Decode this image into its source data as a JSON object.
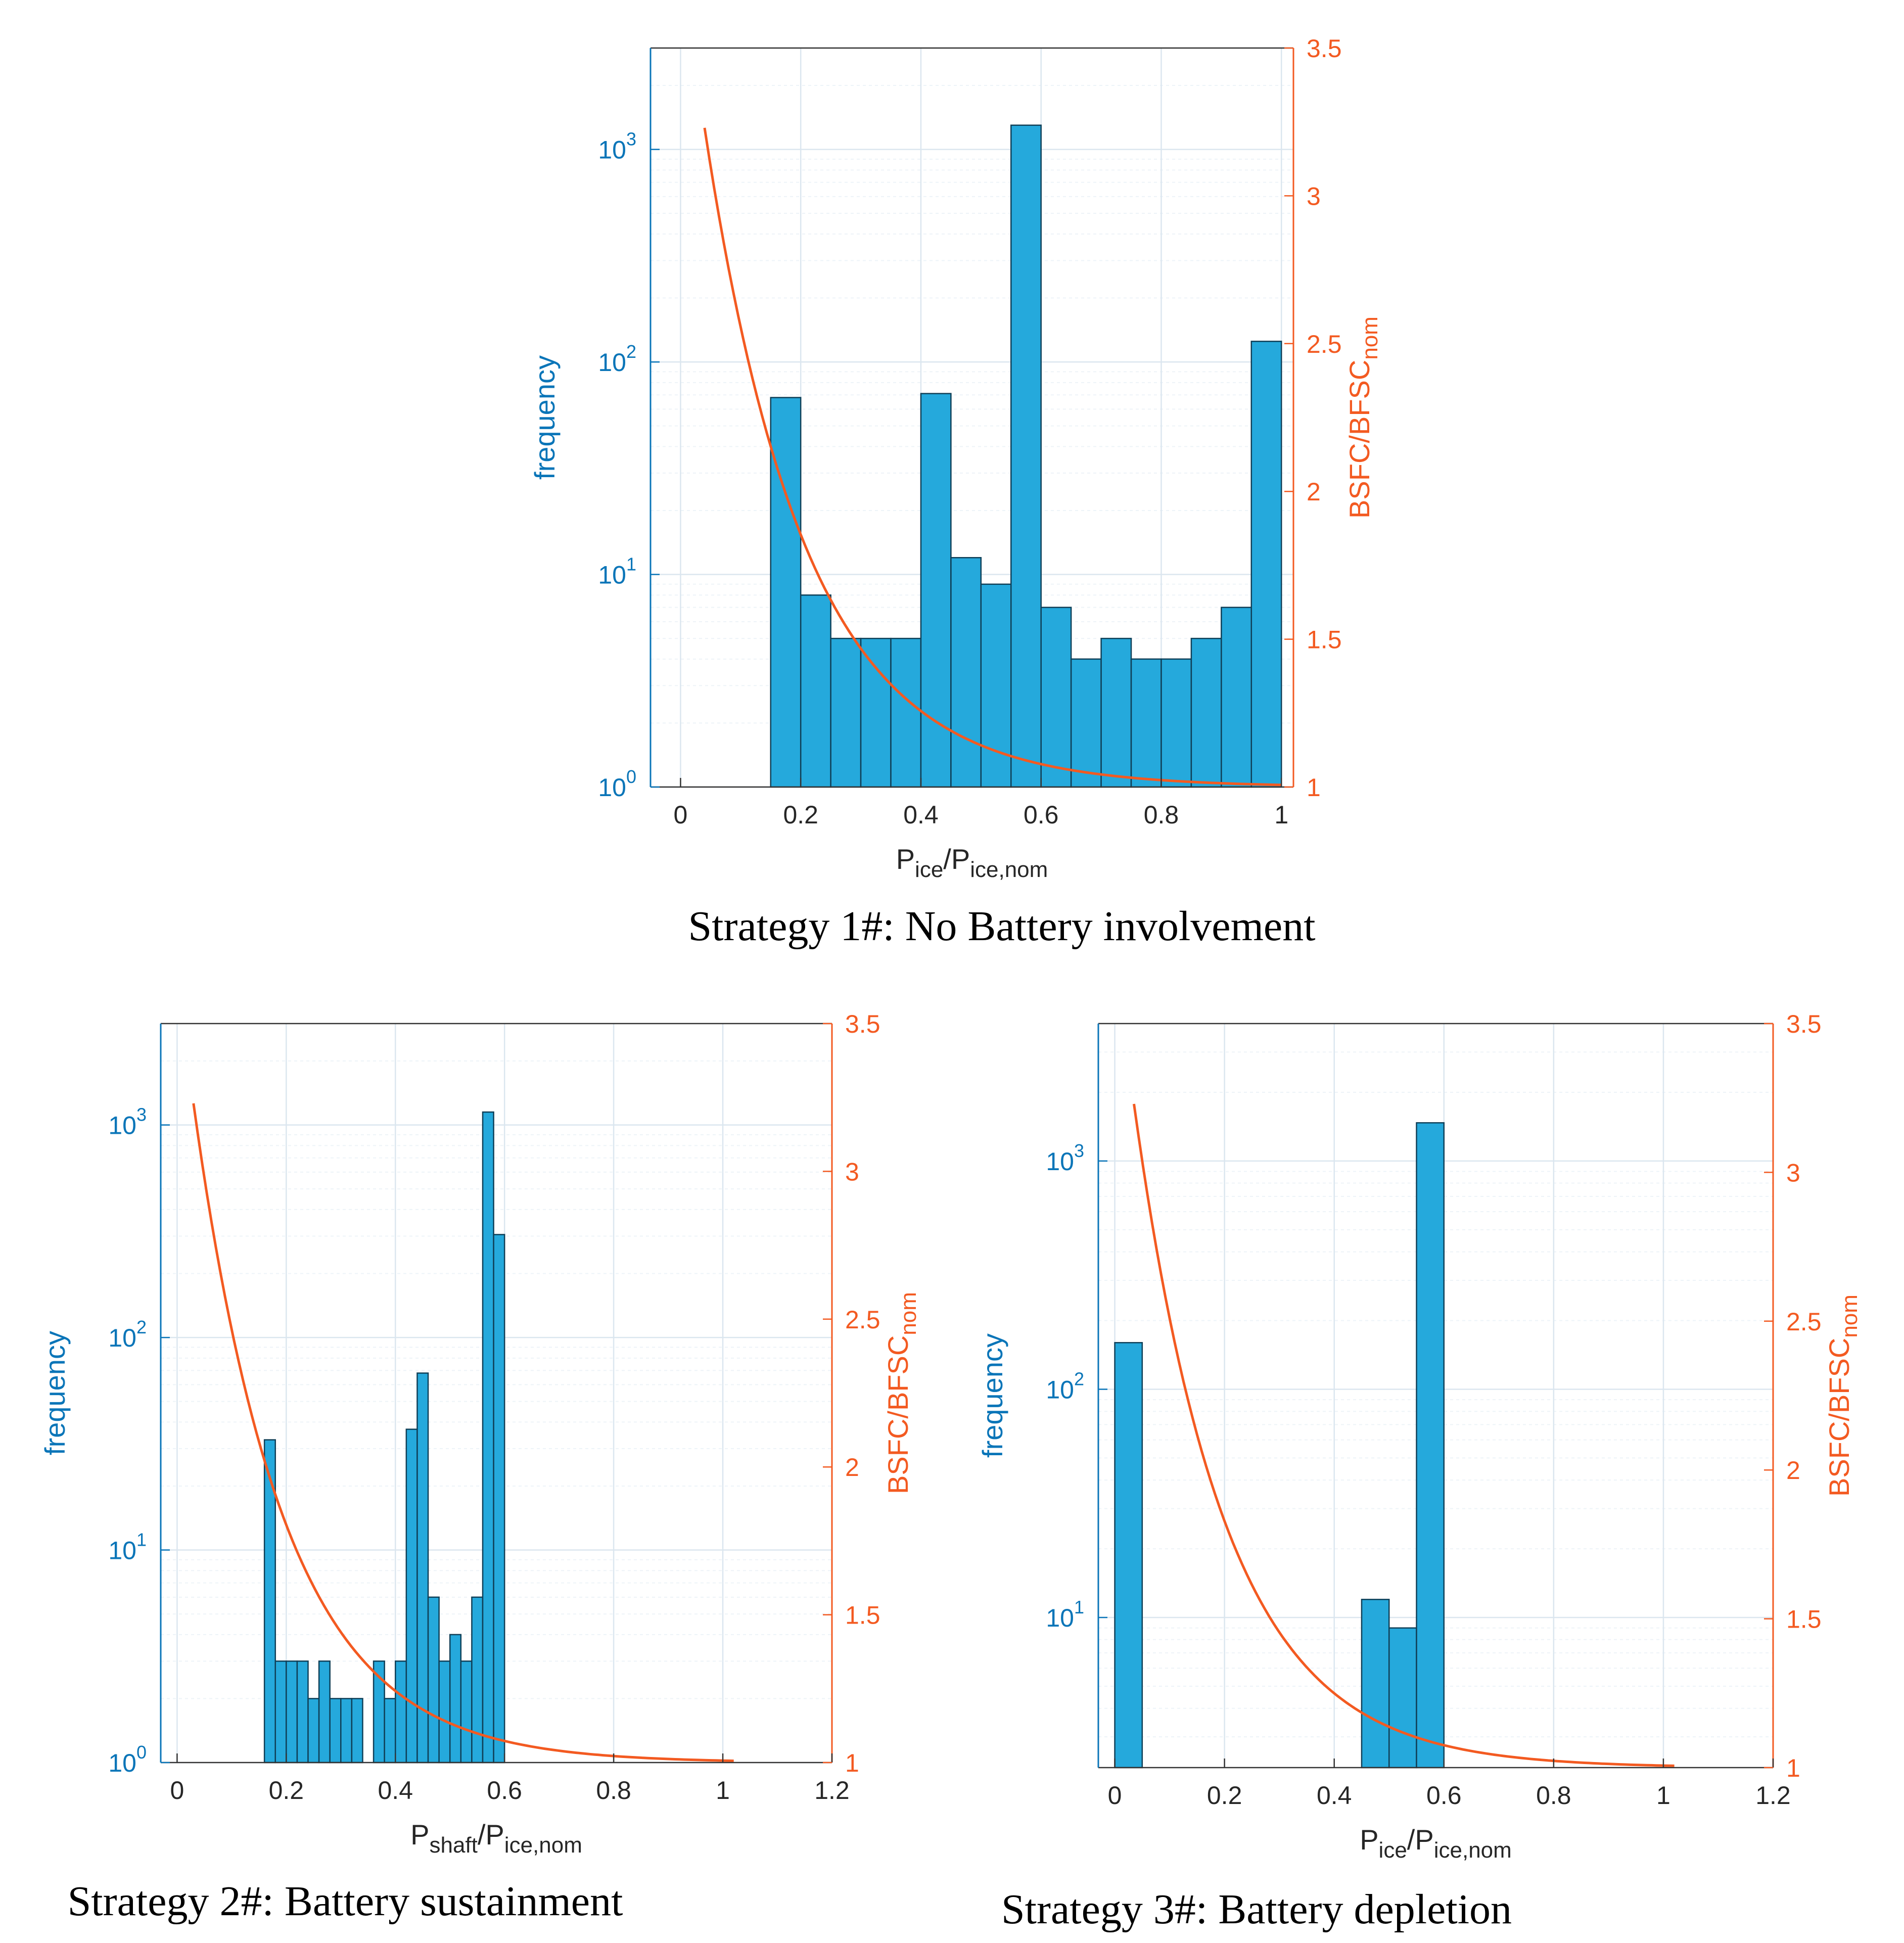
{
  "colors": {
    "bar_fill": "#25a9dc",
    "bar_edge": "#0f3f57",
    "left_axis": "#0a75b8",
    "right_axis": "#f35a21",
    "curve": "#f35a21",
    "grid": "#dbe6ef",
    "black_axis": "#333333"
  },
  "chart_data": [
    {
      "id": "strategy1",
      "type": "bar",
      "caption": "Strategy 1#: No Battery involvement",
      "xlabel": {
        "main": "P",
        "sub1": "ice",
        "mid": "/P",
        "sub2": "ice,nom"
      },
      "ylabel_left": "frequency",
      "ylabel_right": {
        "main": "BSFC/BFSC",
        "sub": "nom"
      },
      "xlim": [
        -0.05,
        1.02
      ],
      "xticks": [
        0,
        0.2,
        0.4,
        0.6,
        0.8,
        1
      ],
      "xtick_labels": [
        "0",
        "0.2",
        "0.4",
        "0.6",
        "0.8",
        "1"
      ],
      "ylim_log": [
        1,
        3000
      ],
      "yticks_left": [
        {
          "value": 1,
          "base": "10",
          "exp": "0"
        },
        {
          "value": 10,
          "base": "10",
          "exp": "1"
        },
        {
          "value": 100,
          "base": "10",
          "exp": "2"
        },
        {
          "value": 1000,
          "base": "10",
          "exp": "3"
        }
      ],
      "ylim_right": [
        1,
        3.5
      ],
      "yticks_right": [
        "1",
        "1.5",
        "2",
        "2.5",
        "3",
        "3.5"
      ],
      "bins": [
        {
          "x0": 0.15,
          "x1": 0.2,
          "value": 68
        },
        {
          "x0": 0.2,
          "x1": 0.25,
          "value": 8
        },
        {
          "x0": 0.25,
          "x1": 0.3,
          "value": 5
        },
        {
          "x0": 0.3,
          "x1": 0.35,
          "value": 5
        },
        {
          "x0": 0.35,
          "x1": 0.4,
          "value": 5
        },
        {
          "x0": 0.4,
          "x1": 0.45,
          "value": 71
        },
        {
          "x0": 0.45,
          "x1": 0.5,
          "value": 12
        },
        {
          "x0": 0.5,
          "x1": 0.55,
          "value": 9
        },
        {
          "x0": 0.55,
          "x1": 0.6,
          "value": 1300
        },
        {
          "x0": 0.6,
          "x1": 0.65,
          "value": 7
        },
        {
          "x0": 0.65,
          "x1": 0.7,
          "value": 4
        },
        {
          "x0": 0.7,
          "x1": 0.75,
          "value": 5
        },
        {
          "x0": 0.75,
          "x1": 0.8,
          "value": 4
        },
        {
          "x0": 0.8,
          "x1": 0.85,
          "value": 4
        },
        {
          "x0": 0.85,
          "x1": 0.9,
          "value": 5
        },
        {
          "x0": 0.9,
          "x1": 0.95,
          "value": 7
        },
        {
          "x0": 0.95,
          "x1": 1.0,
          "value": 125
        }
      ],
      "curve": {
        "x0": 0.04,
        "x1": 1.0,
        "y_start": 3.23,
        "y_end": 1.0
      }
    },
    {
      "id": "strategy2",
      "type": "bar",
      "caption": "Strategy 2#: Battery sustainment",
      "xlabel": {
        "main": "P",
        "sub1": "shaft",
        "mid": "/P",
        "sub2": "ice,nom"
      },
      "ylabel_left": "frequency",
      "ylabel_right": {
        "main": "BSFC/BFSC",
        "sub": "nom"
      },
      "xlim": [
        -0.03,
        1.2
      ],
      "xticks": [
        0,
        0.2,
        0.4,
        0.6,
        0.8,
        1,
        1.2
      ],
      "xtick_labels": [
        "0",
        "0.2",
        "0.4",
        "0.6",
        "0.8",
        "1",
        "1.2"
      ],
      "ylim_log": [
        1,
        3000
      ],
      "yticks_left": [
        {
          "value": 1,
          "base": "10",
          "exp": "0"
        },
        {
          "value": 10,
          "base": "10",
          "exp": "1"
        },
        {
          "value": 100,
          "base": "10",
          "exp": "2"
        },
        {
          "value": 1000,
          "base": "10",
          "exp": "3"
        }
      ],
      "ylim_right": [
        1,
        3.5
      ],
      "yticks_right": [
        "1",
        "1.5",
        "2",
        "2.5",
        "3",
        "3.5"
      ],
      "bins": [
        {
          "x0": 0.16,
          "x1": 0.18,
          "value": 33
        },
        {
          "x0": 0.18,
          "x1": 0.2,
          "value": 3
        },
        {
          "x0": 0.2,
          "x1": 0.22,
          "value": 3
        },
        {
          "x0": 0.22,
          "x1": 0.24,
          "value": 3
        },
        {
          "x0": 0.24,
          "x1": 0.26,
          "value": 2
        },
        {
          "x0": 0.26,
          "x1": 0.28,
          "value": 3
        },
        {
          "x0": 0.28,
          "x1": 0.3,
          "value": 2
        },
        {
          "x0": 0.3,
          "x1": 0.32,
          "value": 2
        },
        {
          "x0": 0.32,
          "x1": 0.34,
          "value": 2
        },
        {
          "x0": 0.36,
          "x1": 0.38,
          "value": 3
        },
        {
          "x0": 0.38,
          "x1": 0.4,
          "value": 2
        },
        {
          "x0": 0.4,
          "x1": 0.42,
          "value": 3
        },
        {
          "x0": 0.42,
          "x1": 0.44,
          "value": 37
        },
        {
          "x0": 0.44,
          "x1": 0.46,
          "value": 68
        },
        {
          "x0": 0.46,
          "x1": 0.48,
          "value": 6
        },
        {
          "x0": 0.48,
          "x1": 0.5,
          "value": 3
        },
        {
          "x0": 0.5,
          "x1": 0.52,
          "value": 4
        },
        {
          "x0": 0.52,
          "x1": 0.54,
          "value": 3
        },
        {
          "x0": 0.54,
          "x1": 0.56,
          "value": 6
        },
        {
          "x0": 0.56,
          "x1": 0.58,
          "value": 1150
        },
        {
          "x0": 0.58,
          "x1": 0.6,
          "value": 305
        }
      ],
      "curve": {
        "x0": 0.03,
        "x1": 1.02,
        "y_start": 3.23,
        "y_end": 1.0
      }
    },
    {
      "id": "strategy3",
      "type": "bar",
      "caption": "Strategy 3#: Battery depletion",
      "xlabel": {
        "main": "P",
        "sub1": "ice",
        "mid": "/P",
        "sub2": "ice,nom"
      },
      "ylabel_left": "frequency",
      "ylabel_right": {
        "main": "BSFC/BFSC",
        "sub": "nom"
      },
      "xlim": [
        -0.03,
        1.2
      ],
      "xticks": [
        0,
        0.2,
        0.4,
        0.6,
        0.8,
        1,
        1.2
      ],
      "xtick_labels": [
        "0",
        "0.2",
        "0.4",
        "0.6",
        "0.8",
        "1",
        "1.2"
      ],
      "ylim_log": [
        2.2,
        4000
      ],
      "yticks_left": [
        {
          "value": 10,
          "base": "10",
          "exp": "1"
        },
        {
          "value": 100,
          "base": "10",
          "exp": "2"
        },
        {
          "value": 1000,
          "base": "10",
          "exp": "3"
        }
      ],
      "ylim_right": [
        1,
        3.5
      ],
      "yticks_right": [
        "1",
        "1.5",
        "2",
        "2.5",
        "3",
        "3.5"
      ],
      "bins": [
        {
          "x0": 0.0,
          "x1": 0.05,
          "value": 160
        },
        {
          "x0": 0.45,
          "x1": 0.5,
          "value": 12
        },
        {
          "x0": 0.5,
          "x1": 0.55,
          "value": 9
        },
        {
          "x0": 0.55,
          "x1": 0.6,
          "value": 1470
        }
      ],
      "curve": {
        "x0": 0.035,
        "x1": 1.02,
        "y_start": 3.23,
        "y_end": 1.0
      }
    }
  ]
}
